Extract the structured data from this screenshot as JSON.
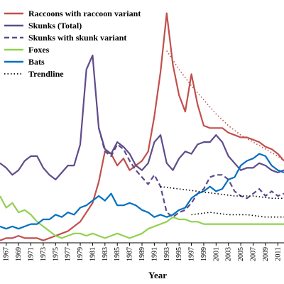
{
  "chart_data": {
    "type": "line",
    "xlabel": "Year",
    "ylabel": "",
    "xlim": [
      1966,
      2012
    ],
    "ylim": [
      0,
      1.0
    ],
    "grid": false,
    "legend_position": "top-left",
    "x_tick_labels": [
      "1967",
      "1969",
      "1971",
      "1973",
      "1975",
      "1977",
      "1979",
      "1981",
      "1983",
      "1985",
      "1987",
      "1989",
      "1991",
      "1993",
      "1995",
      "1997",
      "1999",
      "2001",
      "2003",
      "2005",
      "2007",
      "2009",
      "2011"
    ],
    "series": [
      {
        "name": "Raccoons with raccoon variant",
        "color": "#c0504d",
        "style": "solid",
        "x": [
          1966,
          1967,
          1968,
          1969,
          1970,
          1971,
          1972,
          1973,
          1974,
          1975,
          1976,
          1977,
          1978,
          1979,
          1980,
          1981,
          1982,
          1983,
          1984,
          1985,
          1986,
          1987,
          1988,
          1989,
          1990,
          1991,
          1992,
          1993,
          1994,
          1995,
          1996,
          1997,
          1998,
          1999,
          2000,
          2001,
          2002,
          2003,
          2004,
          2005,
          2006,
          2007,
          2008,
          2009,
          2010,
          2011,
          2012
        ],
        "values": [
          0.01,
          0.02,
          0.02,
          0.03,
          0.02,
          0.02,
          0.02,
          0.01,
          0.02,
          0.03,
          0.04,
          0.05,
          0.07,
          0.09,
          0.13,
          0.17,
          0.26,
          0.39,
          0.38,
          0.33,
          0.36,
          0.31,
          0.33,
          0.35,
          0.39,
          0.54,
          0.73,
          0.98,
          0.76,
          0.63,
          0.56,
          0.72,
          0.59,
          0.5,
          0.49,
          0.49,
          0.49,
          0.47,
          0.46,
          0.45,
          0.45,
          0.44,
          0.43,
          0.41,
          0.4,
          0.38,
          0.35
        ]
      },
      {
        "name": "Skunks (Total)",
        "color": "#5f4b8b",
        "style": "solid",
        "x": [
          1966,
          1967,
          1968,
          1969,
          1970,
          1971,
          1972,
          1973,
          1974,
          1975,
          1976,
          1977,
          1978,
          1979,
          1980,
          1981,
          1982,
          1983,
          1984,
          1985,
          1986,
          1987,
          1988,
          1989,
          1990,
          1991,
          1992,
          1993,
          1994,
          1995,
          1996,
          1997,
          1998,
          1999,
          2000,
          2001,
          2002,
          2003,
          2004,
          2005,
          2006,
          2007,
          2008,
          2009,
          2010,
          2011,
          2012
        ],
        "values": [
          0.34,
          0.32,
          0.29,
          0.31,
          0.35,
          0.37,
          0.37,
          0.32,
          0.29,
          0.27,
          0.3,
          0.33,
          0.33,
          0.42,
          0.74,
          0.8,
          0.49,
          0.4,
          0.38,
          0.43,
          0.41,
          0.38,
          0.33,
          0.31,
          0.34,
          0.43,
          0.46,
          0.34,
          0.31,
          0.36,
          0.39,
          0.38,
          0.42,
          0.43,
          0.43,
          0.46,
          0.43,
          0.37,
          0.34,
          0.31,
          0.32,
          0.32,
          0.34,
          0.33,
          0.31,
          0.3,
          0.31
        ]
      },
      {
        "name": "Skunks with skunk variant",
        "color": "#5f4b8b",
        "style": "dashed",
        "x": [
          1982,
          1983,
          1984,
          1985,
          1986,
          1987,
          1988,
          1989,
          1990,
          1991,
          1992,
          1993,
          1994,
          1995,
          1996,
          1997,
          1998,
          1999,
          2000,
          2001,
          2002,
          2003,
          2004,
          2005,
          2006,
          2007,
          2008,
          2009,
          2010,
          2011,
          2012
        ],
        "values": [
          0.49,
          0.39,
          0.37,
          0.42,
          0.4,
          0.35,
          0.31,
          0.28,
          0.25,
          0.29,
          0.24,
          0.13,
          0.11,
          0.13,
          0.14,
          0.17,
          0.21,
          0.23,
          0.28,
          0.29,
          0.29,
          0.27,
          0.22,
          0.2,
          0.19,
          0.21,
          0.23,
          0.2,
          0.22,
          0.2,
          0.21
        ]
      },
      {
        "name": "Foxes",
        "color": "#92d050",
        "style": "solid",
        "x": [
          1966,
          1967,
          1968,
          1969,
          1970,
          1971,
          1972,
          1973,
          1974,
          1975,
          1976,
          1977,
          1978,
          1979,
          1980,
          1981,
          1982,
          1983,
          1984,
          1985,
          1986,
          1987,
          1988,
          1989,
          1990,
          1991,
          1992,
          1993,
          1994,
          1995,
          1996,
          1997,
          1998,
          1999,
          2000,
          2001,
          2002,
          2003,
          2004,
          2005,
          2006,
          2007,
          2008,
          2009,
          2010,
          2011,
          2012
        ],
        "values": [
          0.2,
          0.15,
          0.17,
          0.13,
          0.14,
          0.12,
          0.09,
          0.07,
          0.05,
          0.03,
          0.02,
          0.03,
          0.04,
          0.04,
          0.03,
          0.04,
          0.03,
          0.02,
          0.03,
          0.04,
          0.03,
          0.02,
          0.03,
          0.04,
          0.06,
          0.07,
          0.08,
          0.09,
          0.11,
          0.1,
          0.1,
          0.09,
          0.09,
          0.08,
          0.08,
          0.08,
          0.08,
          0.08,
          0.08,
          0.08,
          0.08,
          0.08,
          0.08,
          0.08,
          0.08,
          0.08,
          0.08
        ]
      },
      {
        "name": "Bats",
        "color": "#0070c0",
        "style": "solid",
        "x": [
          1966,
          1967,
          1968,
          1969,
          1970,
          1971,
          1972,
          1973,
          1974,
          1975,
          1976,
          1977,
          1978,
          1979,
          1980,
          1981,
          1982,
          1983,
          1984,
          1985,
          1986,
          1987,
          1988,
          1989,
          1990,
          1991,
          1992,
          1993,
          1994,
          1995,
          1996,
          1997,
          1998,
          1999,
          2000,
          2001,
          2002,
          2003,
          2004,
          2005,
          2006,
          2007,
          2008,
          2009,
          2010,
          2011,
          2012
        ],
        "values": [
          0.07,
          0.06,
          0.07,
          0.06,
          0.07,
          0.08,
          0.08,
          0.1,
          0.1,
          0.12,
          0.11,
          0.13,
          0.12,
          0.15,
          0.16,
          0.18,
          0.2,
          0.18,
          0.21,
          0.16,
          0.16,
          0.17,
          0.16,
          0.14,
          0.13,
          0.11,
          0.12,
          0.11,
          0.12,
          0.14,
          0.15,
          0.19,
          0.21,
          0.22,
          0.24,
          0.22,
          0.23,
          0.27,
          0.28,
          0.33,
          0.35,
          0.36,
          0.38,
          0.37,
          0.33,
          0.31,
          0.3
        ]
      },
      {
        "name": "Trendline",
        "color": "#c0504d",
        "style": "dotted",
        "x": [
          1993,
          1995,
          1997,
          1999,
          2001,
          2003,
          2005,
          2007,
          2009,
          2011,
          2012
        ],
        "values": [
          0.82,
          0.74,
          0.67,
          0.61,
          0.55,
          0.5,
          0.46,
          0.43,
          0.4,
          0.37,
          0.35
        ]
      },
      {
        "name": "Trendline",
        "color": "#000000",
        "style": "dotted",
        "x": [
          1992,
          1995,
          1998,
          2001,
          2004,
          2007,
          2010,
          2012
        ],
        "values": [
          0.24,
          0.23,
          0.22,
          0.21,
          0.2,
          0.2,
          0.19,
          0.19
        ]
      },
      {
        "name": "Trendline",
        "color": "#000000",
        "style": "dotted",
        "x": [
          1997,
          2000,
          2003,
          2006,
          2009,
          2012
        ],
        "values": [
          0.12,
          0.13,
          0.12,
          0.12,
          0.11,
          0.11
        ]
      }
    ],
    "legend": [
      {
        "label": "Raccoons with raccoon variant",
        "color": "#c0504d",
        "style": "solid"
      },
      {
        "label": "Skunks (Total)",
        "color": "#5f4b8b",
        "style": "solid"
      },
      {
        "label": "Skunks with skunk variant",
        "color": "#5f4b8b",
        "style": "dashed"
      },
      {
        "label": "Foxes",
        "color": "#92d050",
        "style": "solid"
      },
      {
        "label": "Bats",
        "color": "#0070c0",
        "style": "solid"
      },
      {
        "label": "Trendline",
        "color": "#000000",
        "style": "dotted"
      }
    ]
  }
}
